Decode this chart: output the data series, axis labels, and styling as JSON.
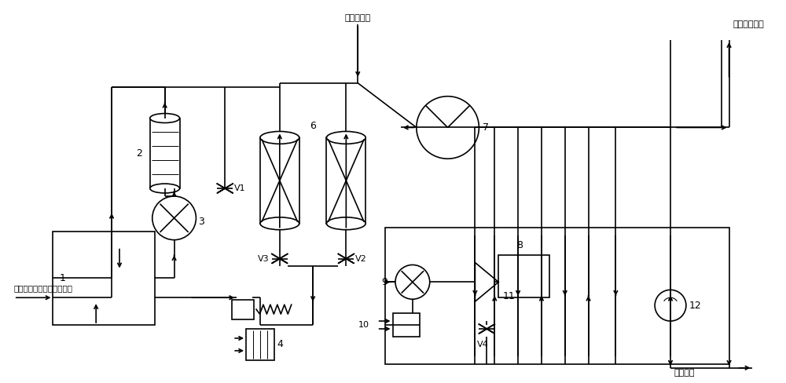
{
  "background_color": "#ffffff",
  "line_color": "#000000",
  "lw": 1.2,
  "figsize": [
    10.0,
    4.88
  ],
  "dpi": 100,
  "labels": {
    "inlet": "出绿色电解水装置副产氧气",
    "supplement": "补充循环气",
    "high_pressure": "高压氧气产品",
    "liquid_oxygen": "液氧产品"
  },
  "font_size": 8
}
